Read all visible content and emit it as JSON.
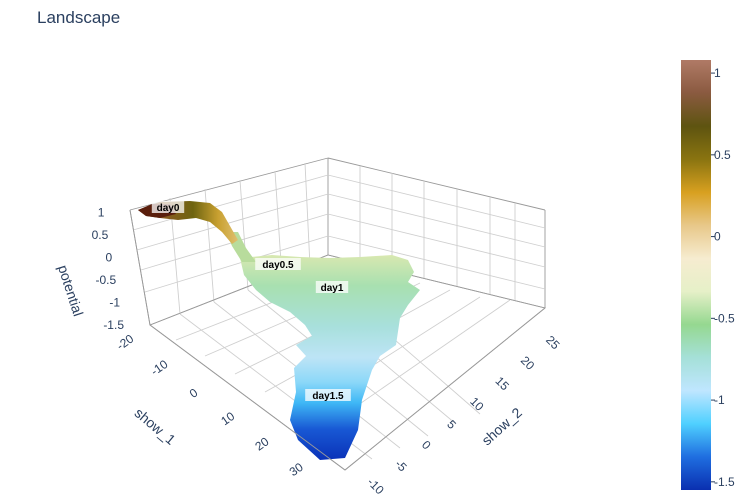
{
  "chart_data": {
    "type": "surface",
    "title": "Landscape",
    "x_axis": {
      "title": "show_1",
      "ticks": [
        "-20",
        "-10",
        "0",
        "10",
        "20",
        "30"
      ]
    },
    "y_axis": {
      "title": "show_2",
      "ticks": [
        "-10",
        "-5",
        "0",
        "5",
        "10",
        "15",
        "20",
        "25"
      ]
    },
    "z_axis": {
      "title": "potential",
      "ticks": [
        "-1.5",
        "-1",
        "-0.5",
        "0",
        "0.5",
        "1"
      ],
      "range": [
        -1.5,
        1.05
      ]
    },
    "colorbar": {
      "ticks": [
        "-1.5",
        "-1",
        "-0.5",
        "0",
        "0.5",
        "1"
      ],
      "range": [
        -1.55,
        1.08
      ],
      "colorscale": [
        "#0a2fb0",
        "#1f6ee0",
        "#4fd0ff",
        "#bfe6ff",
        "#a5e0d8",
        "#95d890",
        "#e6f0c8",
        "#f6ecd0",
        "#e8c88a",
        "#d8a020",
        "#8a7410",
        "#5e5410",
        "#8a5a40",
        "#b07a66"
      ]
    },
    "annotations": [
      {
        "label": "day0",
        "potential": 1.0
      },
      {
        "label": "day0.5",
        "potential": -0.1
      },
      {
        "label": "day1",
        "potential": -0.6
      },
      {
        "label": "day1.5",
        "potential": -1.3
      }
    ]
  }
}
